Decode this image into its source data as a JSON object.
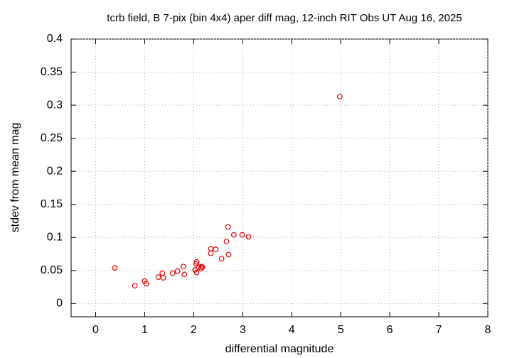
{
  "chart_data": {
    "type": "scatter",
    "title": "tcrb field, B 7-pix (bin 4x4) aper diff mag,  12-inch RIT Obs UT Aug 16, 2025",
    "x_label": "differential magnitude",
    "y_label": "stdev from mean mag",
    "xlim": [
      -0.5,
      8
    ],
    "ylim": [
      -0.02,
      0.4
    ],
    "xticks": [
      0,
      1,
      2,
      3,
      4,
      5,
      6,
      7,
      8
    ],
    "yticks": [
      0,
      0.05,
      0.1,
      0.15,
      0.2,
      0.25,
      0.3,
      0.35,
      0.4
    ],
    "grid": true,
    "series": [
      {
        "color": "#e00000",
        "x": [
          0.39,
          0.8,
          1.0,
          1.03,
          1.28,
          1.36,
          1.38,
          1.57,
          1.67,
          1.79,
          1.81,
          2.03,
          2.05,
          2.06,
          2.06,
          2.1,
          2.15,
          2.16,
          2.18,
          2.35,
          2.35,
          2.45,
          2.57,
          2.67,
          2.7,
          2.71,
          2.82,
          2.99,
          3.12,
          4.98
        ],
        "values": [
          0.054,
          0.027,
          0.034,
          0.03,
          0.04,
          0.046,
          0.039,
          0.046,
          0.049,
          0.056,
          0.044,
          0.051,
          0.06,
          0.063,
          0.047,
          0.055,
          0.053,
          0.056,
          0.055,
          0.083,
          0.076,
          0.082,
          0.068,
          0.094,
          0.116,
          0.074,
          0.104,
          0.104,
          0.101,
          0.313
        ]
      }
    ]
  }
}
